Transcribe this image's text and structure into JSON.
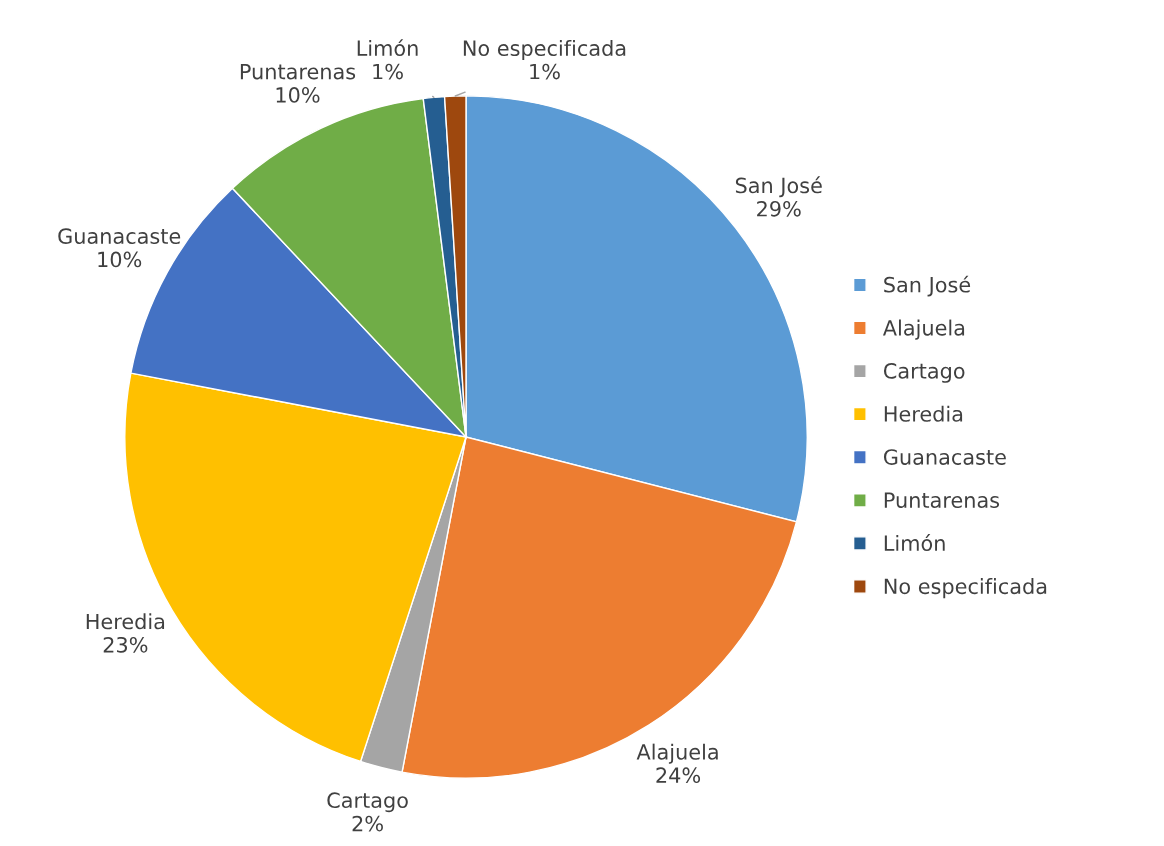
{
  "chart_data": {
    "type": "pie",
    "categories": [
      "San José",
      "Alajuela",
      "Cartago",
      "Heredia",
      "Guanacaste",
      "Puntarenas",
      "Limón",
      "No especificada"
    ],
    "values": [
      29,
      24,
      2,
      23,
      10,
      10,
      1,
      1
    ],
    "value_labels": [
      "29%",
      "24%",
      "2%",
      "23%",
      "10%",
      "10%",
      "1%",
      "1%"
    ],
    "colors": [
      "#5b9bd5",
      "#ed7d31",
      "#a5a5a5",
      "#ffc000",
      "#4472c4",
      "#70ad47",
      "#255e91",
      "#9e480e"
    ],
    "legend": "right"
  }
}
